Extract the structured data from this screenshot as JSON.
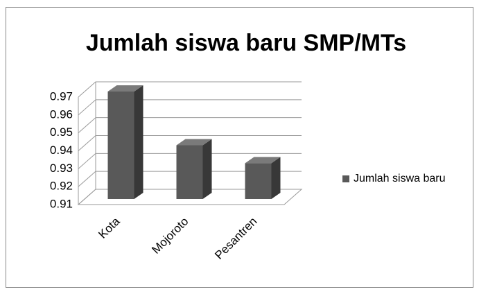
{
  "chart_data": {
    "type": "bar3d",
    "title": "Jumlah siswa baru SMP/MTs",
    "categories": [
      "Kota",
      "Mojoroto",
      "Pesantren"
    ],
    "series": [
      {
        "name": "Jumlah siswa baru",
        "color": "#595959",
        "values": [
          0.97,
          0.94,
          0.93
        ]
      }
    ],
    "ylim": [
      0.91,
      0.97
    ],
    "yticks": [
      0.91,
      0.92,
      0.93,
      0.94,
      0.95,
      0.96,
      0.97
    ],
    "grid": true,
    "legend": "right"
  }
}
